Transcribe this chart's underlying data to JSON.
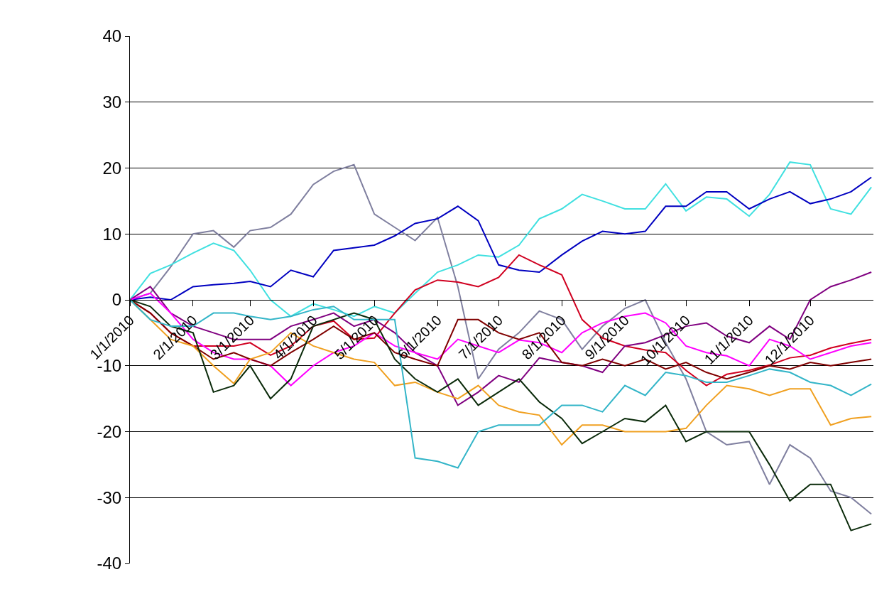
{
  "chart_data": {
    "type": "line",
    "grid": "y",
    "marker": "none",
    "line_style": "solid",
    "x": [
      "2010-01-01",
      "2010-01-11",
      "2010-01-21",
      "2010-02-01",
      "2010-02-11",
      "2010-02-21",
      "2010-03-01",
      "2010-03-11",
      "2010-03-21",
      "2010-04-01",
      "2010-04-11",
      "2010-04-21",
      "2010-05-01",
      "2010-05-11",
      "2010-05-21",
      "2010-06-01",
      "2010-06-11",
      "2010-06-21",
      "2010-07-01",
      "2010-07-11",
      "2010-07-21",
      "2010-08-01",
      "2010-08-11",
      "2010-08-21",
      "2010-09-01",
      "2010-09-11",
      "2010-09-21",
      "2010-10-01",
      "2010-10-11",
      "2010-10-21",
      "2010-11-01",
      "2010-11-11",
      "2010-11-21",
      "2010-12-01",
      "2010-12-11",
      "2010-12-21",
      "2010-12-31"
    ],
    "xlim": [
      "2010-01-01",
      "2011-01-01"
    ],
    "xticks": [
      {
        "value": "2010-01-01",
        "label": "1/1/2010"
      },
      {
        "value": "2010-02-01",
        "label": "2/1/2010"
      },
      {
        "value": "2010-03-01",
        "label": "3/1/2010"
      },
      {
        "value": "2010-04-01",
        "label": "4/1/2010"
      },
      {
        "value": "2010-05-01",
        "label": "5/1/2010"
      },
      {
        "value": "2010-06-01",
        "label": "6/1/2010"
      },
      {
        "value": "2010-07-01",
        "label": "7/1/2010"
      },
      {
        "value": "2010-08-01",
        "label": "8/1/2010"
      },
      {
        "value": "2010-09-01",
        "label": "9/1/2010"
      },
      {
        "value": "2010-10-01",
        "label": "10/1/2010"
      },
      {
        "value": "2010-11-01",
        "label": "11/1/2010"
      },
      {
        "value": "2010-12-01",
        "label": "12/1/2010"
      }
    ],
    "ylim": [
      -40,
      40
    ],
    "yticks": [
      -40,
      -30,
      -20,
      -10,
      0,
      10,
      20,
      30,
      40
    ],
    "series": [
      {
        "color": "#7f7f9f",
        "values": [
          0,
          1,
          5,
          10,
          10.5,
          8,
          10.5,
          11,
          13,
          17.5,
          19.5,
          20.5,
          13,
          11,
          9,
          12.5,
          2,
          -12,
          -7.5,
          -5,
          -1.7,
          -3,
          -7.5,
          -4,
          -1.3,
          0,
          -6.5,
          -12,
          -20,
          -22,
          -21.5,
          -28,
          -22,
          -24,
          -29,
          -30,
          -32.5
        ]
      },
      {
        "color": "#40e0e0",
        "values": [
          0,
          4,
          5.3,
          7.1,
          8.6,
          7.5,
          4.5,
          0,
          -2.5,
          -0.6,
          -1.5,
          -2.5,
          -1,
          -2,
          1,
          4.2,
          5.3,
          6.8,
          6.5,
          8.3,
          12.3,
          13.8,
          16,
          15,
          13.8,
          13.8,
          17.6,
          13.5,
          15.6,
          15.3,
          12.7,
          16,
          20.9,
          20.5,
          13.8,
          13,
          17.1
        ]
      },
      {
        "color": "#0000c0",
        "values": [
          0,
          0.4,
          0,
          2,
          2.3,
          2.5,
          2.8,
          2,
          4.5,
          3.5,
          7.5,
          7.9,
          8.3,
          9.7,
          11.6,
          12.3,
          14.2,
          12,
          5.3,
          4.5,
          4.2,
          6.8,
          8.9,
          10.4,
          10,
          10.4,
          14.2,
          14.2,
          16.4,
          16.4,
          13.8,
          15.3,
          16.4,
          14.6,
          15.3,
          16.4,
          18.6
        ]
      },
      {
        "color": "#d00020",
        "values": [
          0,
          -2,
          -5,
          -7,
          -7,
          -7,
          -6.5,
          -8.4,
          -7,
          -4,
          -3.2,
          -6,
          -5.8,
          -2,
          1.5,
          3,
          2.7,
          2,
          3.4,
          6.8,
          5.3,
          3.8,
          -3,
          -5.8,
          -7,
          -7.6,
          -8,
          -10.7,
          -13,
          -11.3,
          -10.7,
          -9.9,
          -8.8,
          -8.4,
          -7.3,
          -6.6,
          -6
        ]
      },
      {
        "color": "#800080",
        "values": [
          0,
          2,
          -2,
          -4,
          -5,
          -6,
          -6,
          -6,
          -4,
          -3,
          -2,
          -4,
          -3,
          -5,
          -8,
          -10,
          -16,
          -14,
          -11.5,
          -12.5,
          -8.8,
          -9.5,
          -10,
          -11,
          -7,
          -6.5,
          -5.3,
          -4,
          -3.5,
          -5.5,
          -6.5,
          -4,
          -6,
          0,
          2,
          3,
          4.2
        ]
      },
      {
        "color": "#ff00ff",
        "values": [
          0,
          1,
          -2,
          -6,
          -8,
          -9,
          -9,
          -10,
          -13,
          -10,
          -8,
          -7,
          -5,
          -7,
          -8,
          -9,
          -6,
          -7,
          -8,
          -6.1,
          -6.5,
          -8,
          -5,
          -3.5,
          -2.5,
          -2,
          -3.5,
          -7,
          -8,
          -8.5,
          -10,
          -6,
          -7,
          -9,
          -8,
          -7,
          -6.5
        ]
      },
      {
        "color": "#800000",
        "values": [
          0,
          -2,
          -5,
          -7,
          -9,
          -8,
          -9,
          -10,
          -8,
          -6,
          -4,
          -6,
          -5,
          -8,
          -9,
          -10,
          -3,
          -3,
          -5,
          -6,
          -5,
          -9.5,
          -10,
          -9,
          -10,
          -9,
          -10.5,
          -9.5,
          -11,
          -12,
          -11,
          -10,
          -10.5,
          -9.5,
          -10,
          -9.5,
          -9
        ]
      },
      {
        "color": "#f0a020",
        "values": [
          0,
          -3,
          -6,
          -7,
          -10,
          -12.7,
          -9,
          -8,
          -5,
          -7,
          -8,
          -9,
          -9.5,
          -13,
          -12.5,
          -14,
          -15,
          -13,
          -16,
          -17,
          -17.5,
          -22,
          -19,
          -19,
          -20,
          -20,
          -20,
          -19.5,
          -16,
          -13,
          -13.5,
          -14.5,
          -13.5,
          -13.5,
          -19,
          -18,
          -17.7
        ]
      },
      {
        "color": "#0a2a0a",
        "values": [
          0,
          -1,
          -4,
          -5,
          -14,
          -13,
          -10,
          -15,
          -12,
          -4,
          -3,
          -2,
          -3,
          -9,
          -12,
          -14,
          -12,
          -16,
          -14,
          -12,
          -15.5,
          -18,
          -21.8,
          -20,
          -18,
          -18.5,
          -16,
          -21.5,
          -20,
          -20,
          -20,
          -25,
          -30.5,
          -28,
          -28,
          -35,
          -34
        ]
      },
      {
        "color": "#33b5c8",
        "values": [
          0,
          -3,
          -4,
          -4,
          -2,
          -2,
          -2.5,
          -3,
          -2.5,
          -1.5,
          -1,
          -3,
          -3,
          -3,
          -24,
          -24.5,
          -25.5,
          -20,
          -19,
          -19,
          -19,
          -16,
          -16,
          -17,
          -13,
          -14.5,
          -11,
          -11.5,
          -12.5,
          -12.5,
          -11.5,
          -10.5,
          -11,
          -12.5,
          -13,
          -14.5,
          -12.8
        ]
      }
    ]
  }
}
